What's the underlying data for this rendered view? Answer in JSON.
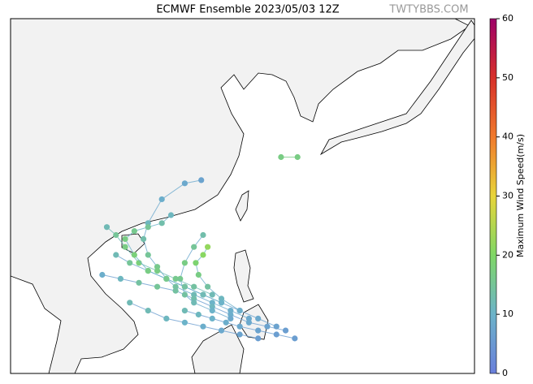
{
  "title": "ECMWF Ensemble 2023/05/03 12Z",
  "watermark": "TWTYBBS.COM",
  "map": {
    "lon_range": [
      96,
      146.6
    ],
    "lat_range": [
      2.1,
      46.7
    ]
  },
  "colorbar": {
    "label": "Maximum Wind Speed(m/s)",
    "range": [
      0,
      60
    ],
    "ticks": [
      0,
      10,
      20,
      30,
      40,
      50,
      60
    ],
    "colormap": [
      "#6a7fdb",
      "#6cb3c9",
      "#7fd766",
      "#e8d53a",
      "#f07a2c",
      "#d7302a",
      "#9e0168"
    ]
  },
  "tracks": [
    {
      "lon": [
        122,
        120,
        118,
        116,
        114,
        113,
        112,
        111,
        110.5,
        111,
        112.5,
        115,
        116.8
      ],
      "lat": [
        9,
        10,
        11,
        12,
        13,
        14,
        15.5,
        17,
        19,
        21,
        24,
        26,
        26.4
      ],
      "wind": [
        8,
        9,
        10,
        12,
        14,
        15,
        16,
        15,
        13,
        11,
        9,
        8,
        7
      ]
    },
    {
      "lon": [
        125,
        123,
        121,
        119,
        117,
        115,
        113,
        111,
        109,
        107.5
      ],
      "lat": [
        8,
        9,
        10,
        11,
        12,
        13,
        14,
        15,
        16,
        17
      ],
      "wind": [
        7,
        8,
        9,
        11,
        13,
        15,
        16,
        17,
        15,
        12
      ]
    },
    {
      "lon": [
        126,
        124,
        122,
        120,
        118,
        116,
        114,
        112,
        110,
        108,
        106
      ],
      "lat": [
        7.5,
        8,
        8.5,
        9.5,
        10.5,
        11.5,
        12.5,
        13,
        13.5,
        14,
        14.5
      ],
      "wind": [
        6,
        7,
        8,
        9,
        11,
        13,
        14,
        15,
        14,
        11,
        9
      ]
    },
    {
      "lon": [
        121,
        119,
        117.5,
        116.5,
        116.2,
        117,
        117.5
      ],
      "lat": [
        10,
        11.5,
        13,
        14.5,
        16,
        17,
        18
      ],
      "wind": [
        9,
        11,
        14,
        17,
        19,
        21,
        22
      ]
    },
    {
      "lon": [
        120,
        118,
        116,
        115,
        114.5,
        115,
        116,
        117
      ],
      "lat": [
        9,
        10,
        11,
        12,
        14,
        16,
        18,
        19.5
      ],
      "wind": [
        8,
        10,
        12,
        14,
        16,
        17,
        15,
        13
      ]
    },
    {
      "lon": [
        118,
        116,
        114,
        112,
        110,
        108.5,
        107.5,
        106.5
      ],
      "lat": [
        12,
        13,
        14,
        15,
        16,
        18,
        19.5,
        20.5
      ],
      "wind": [
        12,
        14,
        16,
        17,
        18,
        17,
        15,
        12
      ]
    },
    {
      "lon": [
        127,
        125,
        123,
        121,
        119.5,
        118,
        116.5,
        115
      ],
      "lat": [
        6.5,
        7,
        7.5,
        8,
        8.5,
        9,
        9.5,
        10
      ],
      "wind": [
        6,
        6,
        7,
        8,
        9,
        10,
        11,
        12
      ]
    },
    {
      "lon": [
        125.5,
        127.3
      ],
      "lat": [
        29.3,
        29.3
      ],
      "wind": [
        17,
        17
      ]
    },
    {
      "lon": [
        123,
        121,
        119,
        117,
        115,
        113,
        111,
        109
      ],
      "lat": [
        6.5,
        7,
        7.5,
        8,
        8.5,
        9,
        10,
        11
      ],
      "wind": [
        6,
        7,
        8,
        9,
        10,
        11,
        12,
        12
      ]
    },
    {
      "lon": [
        119,
        117,
        115,
        113,
        111,
        109.5,
        108.5,
        109.5,
        111,
        112.5,
        113.5
      ],
      "lat": [
        11,
        12,
        13,
        14,
        15,
        17,
        19,
        20,
        20.5,
        21,
        22
      ],
      "wind": [
        10,
        12,
        14,
        16,
        17,
        18,
        17,
        16,
        15,
        13,
        11
      ]
    }
  ]
}
